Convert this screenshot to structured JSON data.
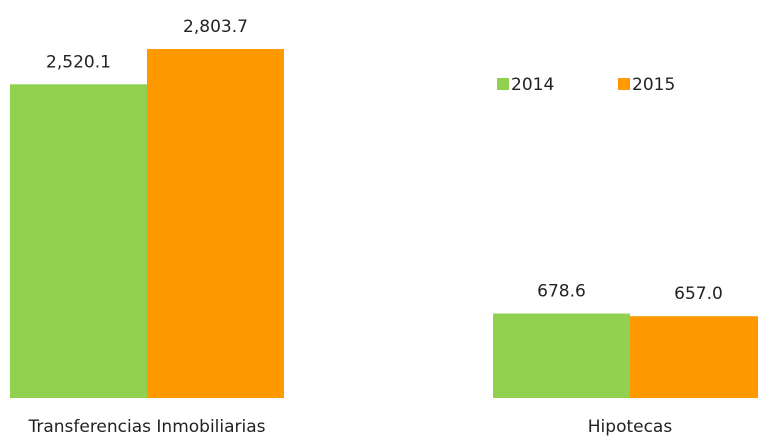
{
  "chart_data": {
    "type": "bar",
    "categories": [
      "Transferencias Inmobiliarias",
      "Hipotecas"
    ],
    "series": [
      {
        "name": "2014",
        "color": "#92d050",
        "values": [
          2520.1,
          678.6
        ],
        "value_labels": [
          "2,520.1",
          "678.6"
        ]
      },
      {
        "name": "2015",
        "color": "#ff9900",
        "values": [
          2803.7,
          657.0
        ],
        "value_labels": [
          "2,803.7",
          "657.0"
        ]
      }
    ],
    "legend": "upper right"
  }
}
